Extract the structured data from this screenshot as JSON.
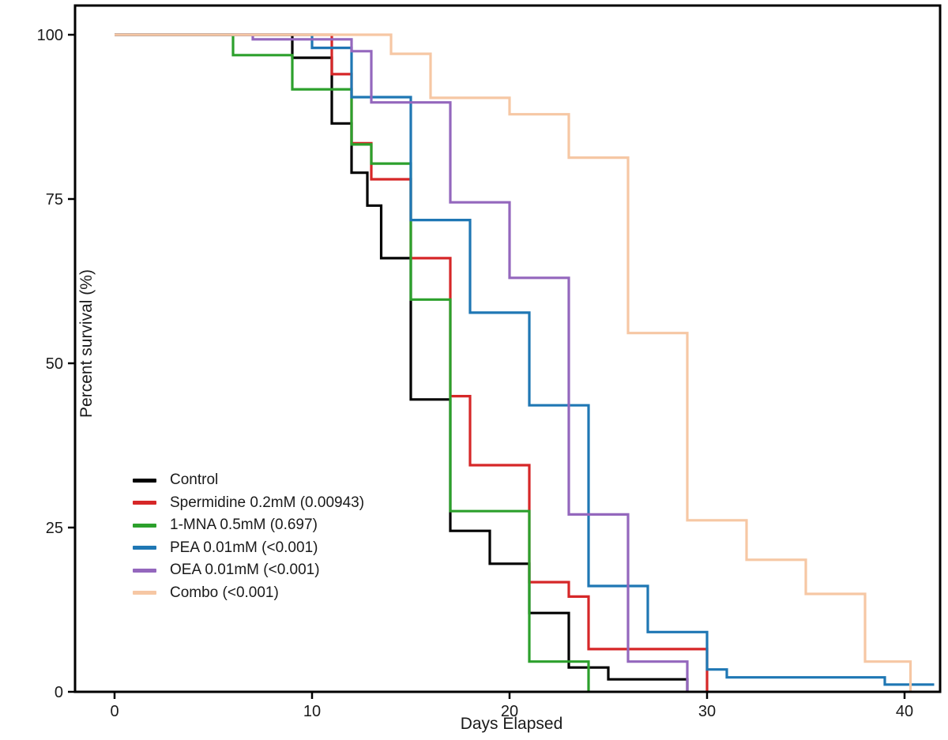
{
  "chart_data": {
    "type": "line",
    "subtype": "kaplan-meier-step-survival",
    "title": "",
    "xlabel": "Days Elapsed",
    "ylabel": "Percent survival (%)",
    "xlim": [
      -2,
      42
    ],
    "ylim": [
      0,
      104
    ],
    "x_ticks": [
      0,
      10,
      20,
      30,
      40
    ],
    "y_ticks": [
      0,
      25,
      50,
      75,
      100
    ],
    "grid": false,
    "legend_position": "lower-left-inside",
    "frame": "full-box",
    "series": [
      {
        "name": "Control",
        "color": "#000000",
        "points": [
          [
            0,
            100
          ],
          [
            9,
            96.5
          ],
          [
            11,
            86.5
          ],
          [
            12,
            79
          ],
          [
            12.8,
            74
          ],
          [
            13.5,
            66
          ],
          [
            15,
            44.5
          ],
          [
            17,
            24.5
          ],
          [
            19,
            19.5
          ],
          [
            21,
            12
          ],
          [
            23,
            3.7
          ],
          [
            25,
            1.9
          ],
          [
            29,
            0
          ]
        ]
      },
      {
        "name": "Spermidine 0.2mM (0.00943)",
        "color": "#d62728",
        "points": [
          [
            0,
            100
          ],
          [
            11,
            94
          ],
          [
            12,
            83.5
          ],
          [
            13,
            78
          ],
          [
            15,
            66
          ],
          [
            17,
            45
          ],
          [
            18,
            34.5
          ],
          [
            21,
            16.7
          ],
          [
            23,
            14.5
          ],
          [
            24,
            6.5
          ],
          [
            30,
            0
          ]
        ]
      },
      {
        "name": "1-MNA 0.5mM (0.697)",
        "color": "#2ca02c",
        "points": [
          [
            0,
            100
          ],
          [
            6,
            96.9
          ],
          [
            9,
            91.7
          ],
          [
            12,
            83.3
          ],
          [
            13,
            80.4
          ],
          [
            15,
            59.7
          ],
          [
            17,
            27.5
          ],
          [
            21,
            4.6
          ],
          [
            24,
            0
          ]
        ]
      },
      {
        "name": "PEA 0.01mM (<0.001)",
        "color": "#1f77b4",
        "points": [
          [
            0,
            100
          ],
          [
            10,
            98
          ],
          [
            12,
            90.5
          ],
          [
            15,
            71.8
          ],
          [
            18,
            57.7
          ],
          [
            21,
            43.6
          ],
          [
            24,
            16.1
          ],
          [
            27,
            9.1
          ],
          [
            30,
            3.4
          ],
          [
            31,
            2.2
          ],
          [
            39,
            1.1
          ],
          [
            41.5,
            1.1
          ]
        ]
      },
      {
        "name": "OEA 0.01mM (<0.001)",
        "color": "#9467bd",
        "points": [
          [
            0,
            100
          ],
          [
            7,
            99.3
          ],
          [
            12,
            97.5
          ],
          [
            13,
            89.7
          ],
          [
            17,
            74.5
          ],
          [
            20,
            63
          ],
          [
            23,
            27
          ],
          [
            26,
            4.6
          ],
          [
            29,
            0
          ]
        ]
      },
      {
        "name": "Combo (<0.001)",
        "color": "#f6c7a4",
        "points": [
          [
            0,
            100
          ],
          [
            14,
            97.1
          ],
          [
            16,
            90.4
          ],
          [
            20,
            87.9
          ],
          [
            23,
            81.3
          ],
          [
            26,
            54.6
          ],
          [
            29,
            26.1
          ],
          [
            32,
            20.1
          ],
          [
            35,
            14.9
          ],
          [
            38,
            4.6
          ],
          [
            40.3,
            0
          ]
        ]
      }
    ]
  }
}
